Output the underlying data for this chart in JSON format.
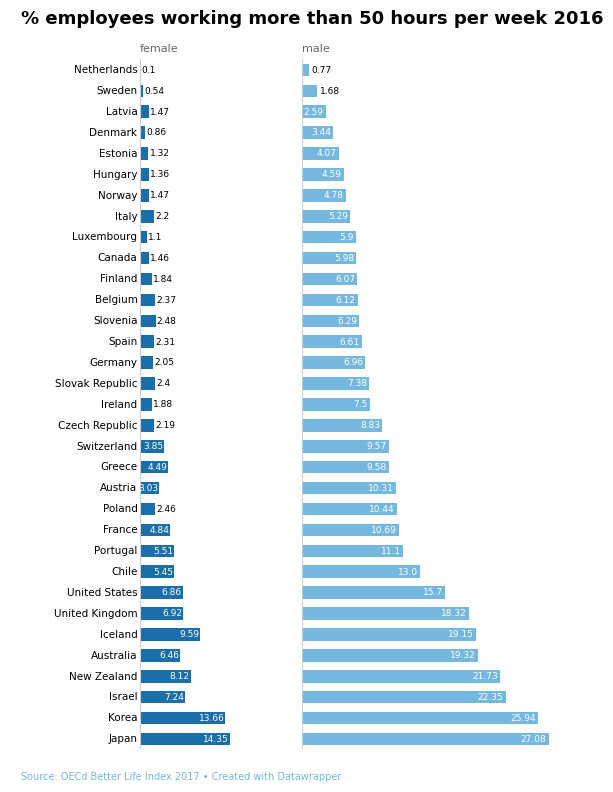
{
  "title": "% employees working more than 50 hours per week 2016",
  "source": "Source: OECd Better Life Index 2017 • Created with Datawrapper",
  "countries": [
    "Netherlands",
    "Sweden",
    "Latvia",
    "Denmark",
    "Estonia",
    "Hungary",
    "Norway",
    "Italy",
    "Luxembourg",
    "Canada",
    "Finland",
    "Belgium",
    "Slovenia",
    "Spain",
    "Germany",
    "Slovak Republic",
    "Ireland",
    "Czech Republic",
    "Switzerland",
    "Greece",
    "Austria",
    "Poland",
    "France",
    "Portugal",
    "Chile",
    "United States",
    "United Kingdom",
    "Iceland",
    "Australia",
    "New Zealand",
    "Israel",
    "Korea",
    "Japan"
  ],
  "female": [
    0.1,
    0.54,
    1.47,
    0.86,
    1.32,
    1.36,
    1.47,
    2.2,
    1.1,
    1.46,
    1.84,
    2.37,
    2.48,
    2.31,
    2.05,
    2.4,
    1.88,
    2.19,
    3.85,
    4.49,
    3.03,
    2.46,
    4.84,
    5.51,
    5.45,
    6.86,
    6.92,
    9.59,
    6.46,
    8.12,
    7.24,
    13.66,
    14.35
  ],
  "male": [
    0.77,
    1.68,
    2.59,
    3.44,
    4.07,
    4.59,
    4.78,
    5.29,
    5.9,
    5.98,
    6.07,
    6.12,
    6.29,
    6.61,
    6.96,
    7.38,
    7.5,
    8.83,
    9.57,
    9.58,
    10.31,
    10.44,
    10.69,
    11.1,
    13.0,
    15.7,
    18.32,
    19.15,
    19.32,
    21.73,
    22.35,
    25.94,
    27.08
  ],
  "female_color": "#1a6faa",
  "male_color": "#74b8e0",
  "bg_color": "#FFFFFF",
  "female_max": 16.0,
  "male_max": 28.0,
  "bar_height": 0.6,
  "title_fontsize": 13,
  "row_fontsize": 7.5,
  "header_fontsize": 8,
  "source_fontsize": 7,
  "value_fontsize": 6.5
}
